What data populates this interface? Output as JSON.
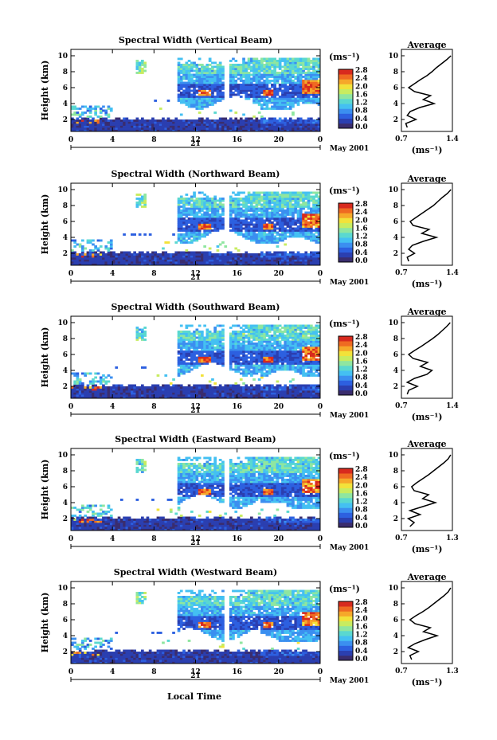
{
  "chart_data": [
    {
      "type": "heatmap",
      "title": "Spectral Width (Vertical Beam)",
      "ylabel": "Height (km)",
      "xticks": [
        "0",
        "4",
        "8",
        "12",
        "16",
        "20",
        "0"
      ],
      "xlim": [
        0,
        24
      ],
      "yticks": [
        "2",
        "4",
        "6",
        "8",
        "10"
      ],
      "ylim": [
        0.5,
        10.3
      ],
      "day_label": "21",
      "date_label": "May 2001",
      "colorbar": {
        "unit": "(ms⁻¹)",
        "ticks": [
          "0.0",
          "0.4",
          "0.8",
          "1.2",
          "1.6",
          "2.0",
          "2.4",
          "2.8"
        ]
      },
      "average": {
        "title": "Average",
        "xlabel": "(ms⁻¹)",
        "xticks": [
          "0.7",
          "1.4"
        ],
        "xlim": [
          0.7,
          1.4
        ],
        "heights": [
          1.0,
          1.5,
          2.0,
          2.5,
          3.0,
          3.5,
          4.0,
          4.5,
          5.0,
          5.5,
          6.0,
          6.5,
          7.0,
          7.5,
          8.0,
          8.5,
          9.0,
          9.5,
          10.0
        ],
        "values": [
          0.78,
          0.76,
          0.9,
          0.78,
          0.82,
          0.95,
          1.15,
          1.0,
          1.1,
          0.88,
          0.8,
          0.88,
          0.96,
          1.05,
          1.12,
          1.18,
          1.25,
          1.32,
          1.38
        ]
      }
    },
    {
      "type": "heatmap",
      "title": "Spectral Width (Northward Beam)",
      "ylabel": "Height (km)",
      "xticks": [
        "0",
        "4",
        "8",
        "12",
        "16",
        "20",
        "0"
      ],
      "xlim": [
        0,
        24
      ],
      "yticks": [
        "2",
        "4",
        "6",
        "8",
        "10"
      ],
      "ylim": [
        0.5,
        10.3
      ],
      "day_label": "21",
      "date_label": "May 2001",
      "colorbar": {
        "unit": "(ms⁻¹)",
        "ticks": [
          "0.0",
          "0.4",
          "0.8",
          "1.2",
          "1.6",
          "2.0",
          "2.4",
          "2.8"
        ]
      },
      "average": {
        "title": "Average",
        "xlabel": "(ms⁻¹)",
        "xticks": [
          "0.7",
          "1.4"
        ],
        "xlim": [
          0.7,
          1.4
        ],
        "heights": [
          1.0,
          1.5,
          2.0,
          2.5,
          3.0,
          3.5,
          4.0,
          4.5,
          5.0,
          5.5,
          6.0,
          6.5,
          7.0,
          7.5,
          8.0,
          8.5,
          9.0,
          9.5,
          10.0
        ],
        "values": [
          0.8,
          0.78,
          0.88,
          0.8,
          0.85,
          1.0,
          1.18,
          0.98,
          1.08,
          0.86,
          0.82,
          0.9,
          0.98,
          1.06,
          1.14,
          1.2,
          1.26,
          1.33,
          1.38
        ]
      }
    },
    {
      "type": "heatmap",
      "title": "Spectral Width (Southward Beam)",
      "ylabel": "Height (km)",
      "xticks": [
        "0",
        "4",
        "8",
        "12",
        "16",
        "20",
        "0"
      ],
      "xlim": [
        0,
        24
      ],
      "yticks": [
        "2",
        "4",
        "6",
        "8",
        "10"
      ],
      "ylim": [
        0.5,
        10.3
      ],
      "day_label": "21",
      "date_label": "May 2001",
      "colorbar": {
        "unit": "(ms⁻¹)",
        "ticks": [
          "0.0",
          "0.4",
          "0.8",
          "1.2",
          "1.6",
          "2.0",
          "2.4",
          "2.8"
        ]
      },
      "average": {
        "title": "Average",
        "xlabel": "(ms⁻¹)",
        "xticks": [
          "0.7",
          "1.4"
        ],
        "xlim": [
          0.7,
          1.4
        ],
        "heights": [
          1.0,
          1.5,
          2.0,
          2.5,
          3.0,
          3.5,
          4.0,
          4.5,
          5.0,
          5.5,
          6.0,
          6.5,
          7.0,
          7.5,
          8.0,
          8.5,
          9.0,
          9.5,
          10.0
        ],
        "values": [
          0.78,
          0.8,
          0.92,
          0.78,
          0.88,
          1.05,
          1.12,
          0.96,
          1.06,
          0.86,
          0.8,
          0.88,
          0.97,
          1.05,
          1.13,
          1.2,
          1.26,
          1.32,
          1.37
        ]
      }
    },
    {
      "type": "heatmap",
      "title": "Spectral Width (Eastward Beam)",
      "ylabel": "Height (km)",
      "xticks": [
        "0",
        "4",
        "8",
        "12",
        "16",
        "20",
        "0"
      ],
      "xlim": [
        0,
        24
      ],
      "yticks": [
        "2",
        "4",
        "6",
        "8",
        "10"
      ],
      "ylim": [
        0.5,
        10.3
      ],
      "day_label": "21",
      "date_label": "May 2001",
      "colorbar": {
        "unit": "(ms⁻¹)",
        "ticks": [
          "0.0",
          "0.4",
          "0.8",
          "1.2",
          "1.6",
          "2.0",
          "2.4",
          "2.8"
        ]
      },
      "average": {
        "title": "Average",
        "xlabel": "(ms⁻¹)",
        "xticks": [
          "0.7",
          "1.3"
        ],
        "xlim": [
          0.7,
          1.3
        ],
        "heights": [
          1.0,
          1.5,
          2.0,
          2.5,
          3.0,
          3.5,
          4.0,
          4.5,
          5.0,
          5.5,
          6.0,
          6.5,
          7.0,
          7.5,
          8.0,
          8.5,
          9.0,
          9.5,
          10.0
        ],
        "values": [
          0.8,
          0.85,
          0.78,
          0.92,
          0.8,
          0.95,
          1.1,
          0.95,
          1.02,
          0.85,
          0.82,
          0.88,
          0.95,
          1.02,
          1.08,
          1.14,
          1.2,
          1.25,
          1.28
        ]
      }
    },
    {
      "type": "heatmap",
      "title": "Spectral Width (Westward Beam)",
      "ylabel": "Height (km)",
      "xticks": [
        "0",
        "4",
        "8",
        "12",
        "16",
        "20",
        "0"
      ],
      "xlim": [
        0,
        24
      ],
      "yticks": [
        "2",
        "4",
        "6",
        "8",
        "10"
      ],
      "ylim": [
        0.5,
        10.3
      ],
      "day_label": "21",
      "date_label": "May 2001",
      "colorbar": {
        "unit": "(ms⁻¹)",
        "ticks": [
          "0.0",
          "0.4",
          "0.8",
          "1.2",
          "1.6",
          "2.0",
          "2.4",
          "2.8"
        ]
      },
      "average": {
        "title": "Average",
        "xlabel": "(ms⁻¹)",
        "xticks": [
          "0.7",
          "1.3"
        ],
        "xlim": [
          0.7,
          1.3
        ],
        "heights": [
          1.0,
          1.5,
          2.0,
          2.5,
          3.0,
          3.5,
          4.0,
          4.5,
          5.0,
          5.5,
          6.0,
          6.5,
          7.0,
          7.5,
          8.0,
          8.5,
          9.0,
          9.5,
          10.0
        ],
        "values": [
          0.82,
          0.8,
          0.9,
          0.78,
          0.86,
          0.98,
          1.12,
          0.96,
          1.04,
          0.86,
          0.8,
          0.87,
          0.95,
          1.02,
          1.08,
          1.14,
          1.2,
          1.25,
          1.28
        ]
      }
    }
  ],
  "shared": {
    "xlabel": "Local Time",
    "colorscale": [
      "#3a2d6e",
      "#2b3fb0",
      "#2d60e0",
      "#3b8ff0",
      "#44c0f2",
      "#5ad8d0",
      "#8fe6a0",
      "#c8ec60",
      "#f2e23a",
      "#f6a82a",
      "#ef6a22",
      "#d82a1e"
    ]
  }
}
